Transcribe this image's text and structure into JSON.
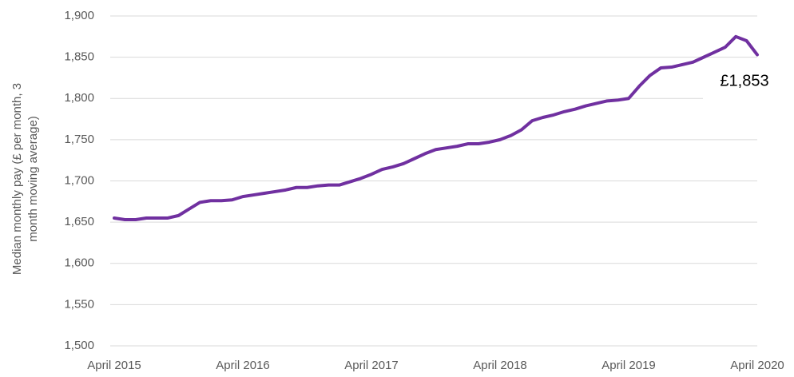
{
  "chart_data": {
    "type": "line",
    "ylabel": [
      "Median monthly pay (£ per month, 3",
      "month moving average)"
    ],
    "annotation": "£1,853",
    "categories": [
      "April 2015",
      null,
      null,
      null,
      null,
      null,
      null,
      null,
      null,
      null,
      null,
      null,
      "April 2016",
      null,
      null,
      null,
      null,
      null,
      null,
      null,
      null,
      null,
      null,
      null,
      "April 2017",
      null,
      null,
      null,
      null,
      null,
      null,
      null,
      null,
      null,
      null,
      null,
      "April 2018",
      null,
      null,
      null,
      null,
      null,
      null,
      null,
      null,
      null,
      null,
      null,
      "April 2019",
      null,
      null,
      null,
      null,
      null,
      null,
      null,
      null,
      null,
      null,
      null,
      "April 2020"
    ],
    "series": [
      {
        "name": "Median monthly pay",
        "color": "#7030a0",
        "values": [
          1655,
          1653,
          1653,
          1655,
          1655,
          1655,
          1658,
          1666,
          1674,
          1676,
          1676,
          1677,
          1681,
          1683,
          1685,
          1687,
          1689,
          1692,
          1692,
          1694,
          1695,
          1695,
          1699,
          1703,
          1708,
          1714,
          1717,
          1721,
          1727,
          1733,
          1738,
          1740,
          1742,
          1745,
          1745,
          1747,
          1750,
          1755,
          1762,
          1773,
          1777,
          1780,
          1784,
          1787,
          1791,
          1794,
          1797,
          1798,
          1800,
          1815,
          1828,
          1837,
          1838,
          1841,
          1844,
          1850,
          1856,
          1862,
          1875,
          1870,
          1853
        ]
      }
    ],
    "ylim": [
      1500,
      1900
    ],
    "yticks": [
      {
        "value": 1500,
        "label": "1,500"
      },
      {
        "value": 1550,
        "label": "1,550"
      },
      {
        "value": 1600,
        "label": "1,600"
      },
      {
        "value": 1650,
        "label": "1,650"
      },
      {
        "value": 1700,
        "label": "1,700"
      },
      {
        "value": 1750,
        "label": "1,750"
      },
      {
        "value": 1800,
        "label": "1,800"
      },
      {
        "value": 1850,
        "label": "1,850"
      },
      {
        "value": 1900,
        "label": "1,900"
      }
    ],
    "grid": true
  }
}
